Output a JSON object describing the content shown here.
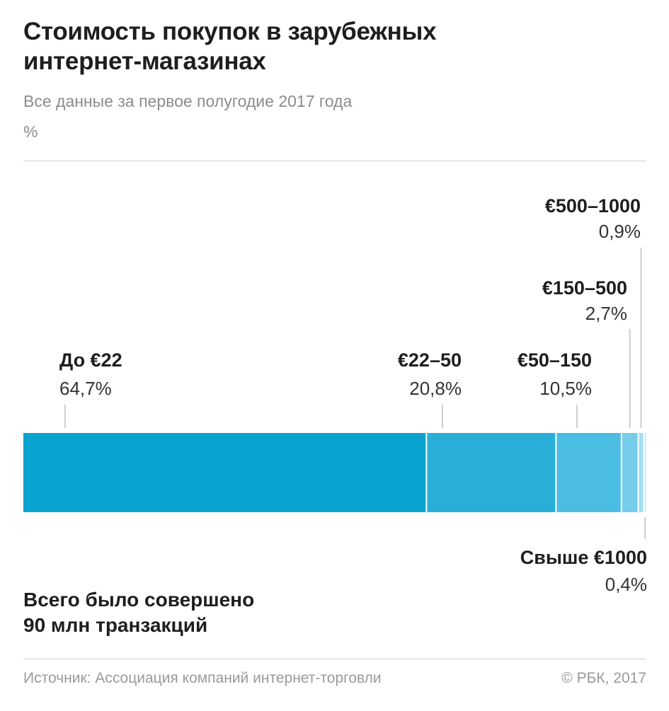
{
  "header": {
    "title_line1": "Стоимость покупок в зарубежных",
    "title_line2": "интернет-магазинах",
    "subtitle": "Все данные за первое полугодие 2017 года",
    "unit": "%"
  },
  "chart_data": {
    "type": "bar",
    "orientation": "horizontal-stacked-100",
    "xlim": [
      0,
      100
    ],
    "categories": [
      "До €22",
      "€22–50",
      "€50–150",
      "€150–500",
      "€500–1000",
      "Свыше €1000"
    ],
    "values": [
      64.7,
      20.8,
      10.5,
      2.7,
      0.9,
      0.4
    ],
    "value_labels": [
      "64,7%",
      "20,8%",
      "10,5%",
      "2,7%",
      "0,9%",
      "0,4%"
    ],
    "colors": [
      "#0aa3d0",
      "#29aed8",
      "#4cbde2",
      "#75cdea",
      "#a3def2",
      "#cdeef8"
    ],
    "label_placement": [
      "above",
      "above",
      "above",
      "above-high",
      "above-highest",
      "below"
    ],
    "grid": false,
    "legend": "none"
  },
  "footer": {
    "total_line1": "Всего было совершено",
    "total_line2": "90 млн транзакций",
    "source": "Источник: Ассоциация компаний интернет-торговли",
    "copyright": "© РБК, 2017"
  }
}
